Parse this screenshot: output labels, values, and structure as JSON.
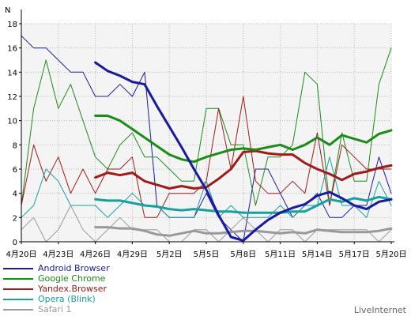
{
  "chart_data": {
    "type": "line",
    "ylabel": "N",
    "ylim": [
      0,
      18
    ],
    "yticks": [
      0,
      2,
      4,
      6,
      8,
      10,
      12,
      14,
      16,
      18
    ],
    "xlim": [
      0,
      30
    ],
    "xticks": [
      {
        "x": 0,
        "label": "4月20日"
      },
      {
        "x": 3,
        "label": "4月23日"
      },
      {
        "x": 6,
        "label": "4月26日"
      },
      {
        "x": 9,
        "label": "4月29日"
      },
      {
        "x": 12,
        "label": "5月2日"
      },
      {
        "x": 15,
        "label": "5月5日"
      },
      {
        "x": 18,
        "label": "5月8日"
      },
      {
        "x": 21,
        "label": "5月11日"
      },
      {
        "x": 24,
        "label": "5月14日"
      },
      {
        "x": 27,
        "label": "5月17日"
      },
      {
        "x": 30,
        "label": "5月20日"
      }
    ],
    "grid": true,
    "raw_series": [
      {
        "name": "Android Browser",
        "color": "#1a1aa0",
        "values": [
          17,
          16,
          16,
          15,
          14,
          14,
          12,
          12,
          13,
          12,
          14,
          3,
          2,
          2,
          2,
          4,
          2,
          1,
          0,
          6,
          6,
          4,
          2,
          3,
          4,
          2,
          2,
          3,
          3,
          7,
          4
        ]
      },
      {
        "name": "Google Chrome",
        "color": "#1a8c1a",
        "values": [
          3,
          11,
          15,
          11,
          13,
          10,
          7,
          6,
          8,
          9,
          7,
          7,
          6,
          5,
          5,
          11,
          11,
          8,
          8,
          3,
          7,
          7,
          8,
          14,
          13,
          3,
          9,
          5,
          5,
          13,
          16
        ]
      },
      {
        "name": "Yandex.Browser",
        "color": "#a01a1a",
        "values": [
          3,
          8,
          5,
          7,
          4,
          6,
          4,
          6,
          6,
          7,
          2,
          2,
          4,
          4,
          4,
          5,
          11,
          6,
          12,
          5,
          4,
          4,
          5,
          4,
          9,
          3,
          8,
          7,
          6,
          6,
          6
        ]
      },
      {
        "name": "Opera (Blink)",
        "color": "#17a0a0",
        "values": [
          2,
          3,
          6,
          5,
          3,
          3,
          3,
          2,
          3,
          4,
          3,
          3,
          2,
          2,
          2,
          5,
          2,
          3,
          2,
          2,
          2,
          3,
          2,
          3,
          3,
          7,
          3,
          3,
          2,
          5,
          3
        ]
      },
      {
        "name": "Safari 1",
        "color": "#999999",
        "values": [
          1,
          2,
          0,
          1,
          3,
          1,
          0,
          1,
          2,
          1,
          1,
          1,
          0,
          0,
          1,
          1,
          0,
          1,
          2,
          1,
          0,
          1,
          1,
          0,
          1,
          1,
          1,
          1,
          1,
          0,
          1
        ]
      }
    ],
    "series": [
      {
        "name": "Android Browser",
        "color": "#1a1aa0",
        "values": [
          null,
          null,
          null,
          null,
          null,
          null,
          14.8,
          14.1,
          13.7,
          13.2,
          13.0,
          11.2,
          9.5,
          7.8,
          6.0,
          4.3,
          2.2,
          0.4,
          0.1,
          1.0,
          1.8,
          2.4,
          2.8,
          3.1,
          3.8,
          4.1,
          3.6,
          3.0,
          2.7,
          3.3,
          3.5
        ]
      },
      {
        "name": "Google Chrome",
        "color": "#1a8c1a",
        "values": [
          null,
          null,
          null,
          null,
          null,
          null,
          10.4,
          10.4,
          10.0,
          9.3,
          8.6,
          7.9,
          7.2,
          6.8,
          6.6,
          7.0,
          7.3,
          7.6,
          7.7,
          7.6,
          7.8,
          8.0,
          7.6,
          8.0,
          8.6,
          8.0,
          8.8,
          8.5,
          8.2,
          8.9,
          9.2
        ]
      },
      {
        "name": "Yandex.Browser",
        "color": "#a01a1a",
        "values": [
          null,
          null,
          null,
          null,
          null,
          null,
          5.3,
          5.7,
          5.5,
          5.7,
          5.0,
          4.7,
          4.4,
          4.6,
          4.4,
          4.5,
          5.2,
          6.0,
          7.4,
          7.5,
          7.3,
          7.2,
          7.2,
          6.5,
          6.0,
          5.6,
          5.1,
          5.6,
          5.8,
          6.1,
          6.3
        ]
      },
      {
        "name": "Opera (Blink)",
        "color": "#17a0a0",
        "values": [
          null,
          null,
          null,
          null,
          null,
          null,
          3.5,
          3.4,
          3.4,
          3.2,
          3.0,
          2.9,
          2.7,
          2.6,
          2.7,
          2.6,
          2.5,
          2.5,
          2.4,
          2.4,
          2.4,
          2.4,
          2.5,
          2.5,
          3.0,
          3.5,
          3.3,
          3.6,
          3.4,
          3.7,
          3.5
        ]
      },
      {
        "name": "Safari 1",
        "color": "#999999",
        "values": [
          null,
          null,
          null,
          null,
          null,
          null,
          1.2,
          1.2,
          1.1,
          1.1,
          0.9,
          0.6,
          0.5,
          0.7,
          0.9,
          0.7,
          0.7,
          0.8,
          0.9,
          0.9,
          0.8,
          0.7,
          0.8,
          0.7,
          1.0,
          0.9,
          0.8,
          0.8,
          0.8,
          0.9,
          1.1
        ]
      }
    ],
    "legend": {
      "position": "bottom-left",
      "entries": [
        {
          "name": "Android Browser",
          "color": "#1a1aa0"
        },
        {
          "name": "Google Chrome",
          "color": "#1a8c1a"
        },
        {
          "name": "Yandex.Browser",
          "color": "#a01a1a"
        },
        {
          "name": "Opera (Blink)",
          "color": "#17a0a0"
        },
        {
          "name": "Safari 1",
          "color": "#999999"
        }
      ]
    }
  },
  "brand": "LiveInternet"
}
